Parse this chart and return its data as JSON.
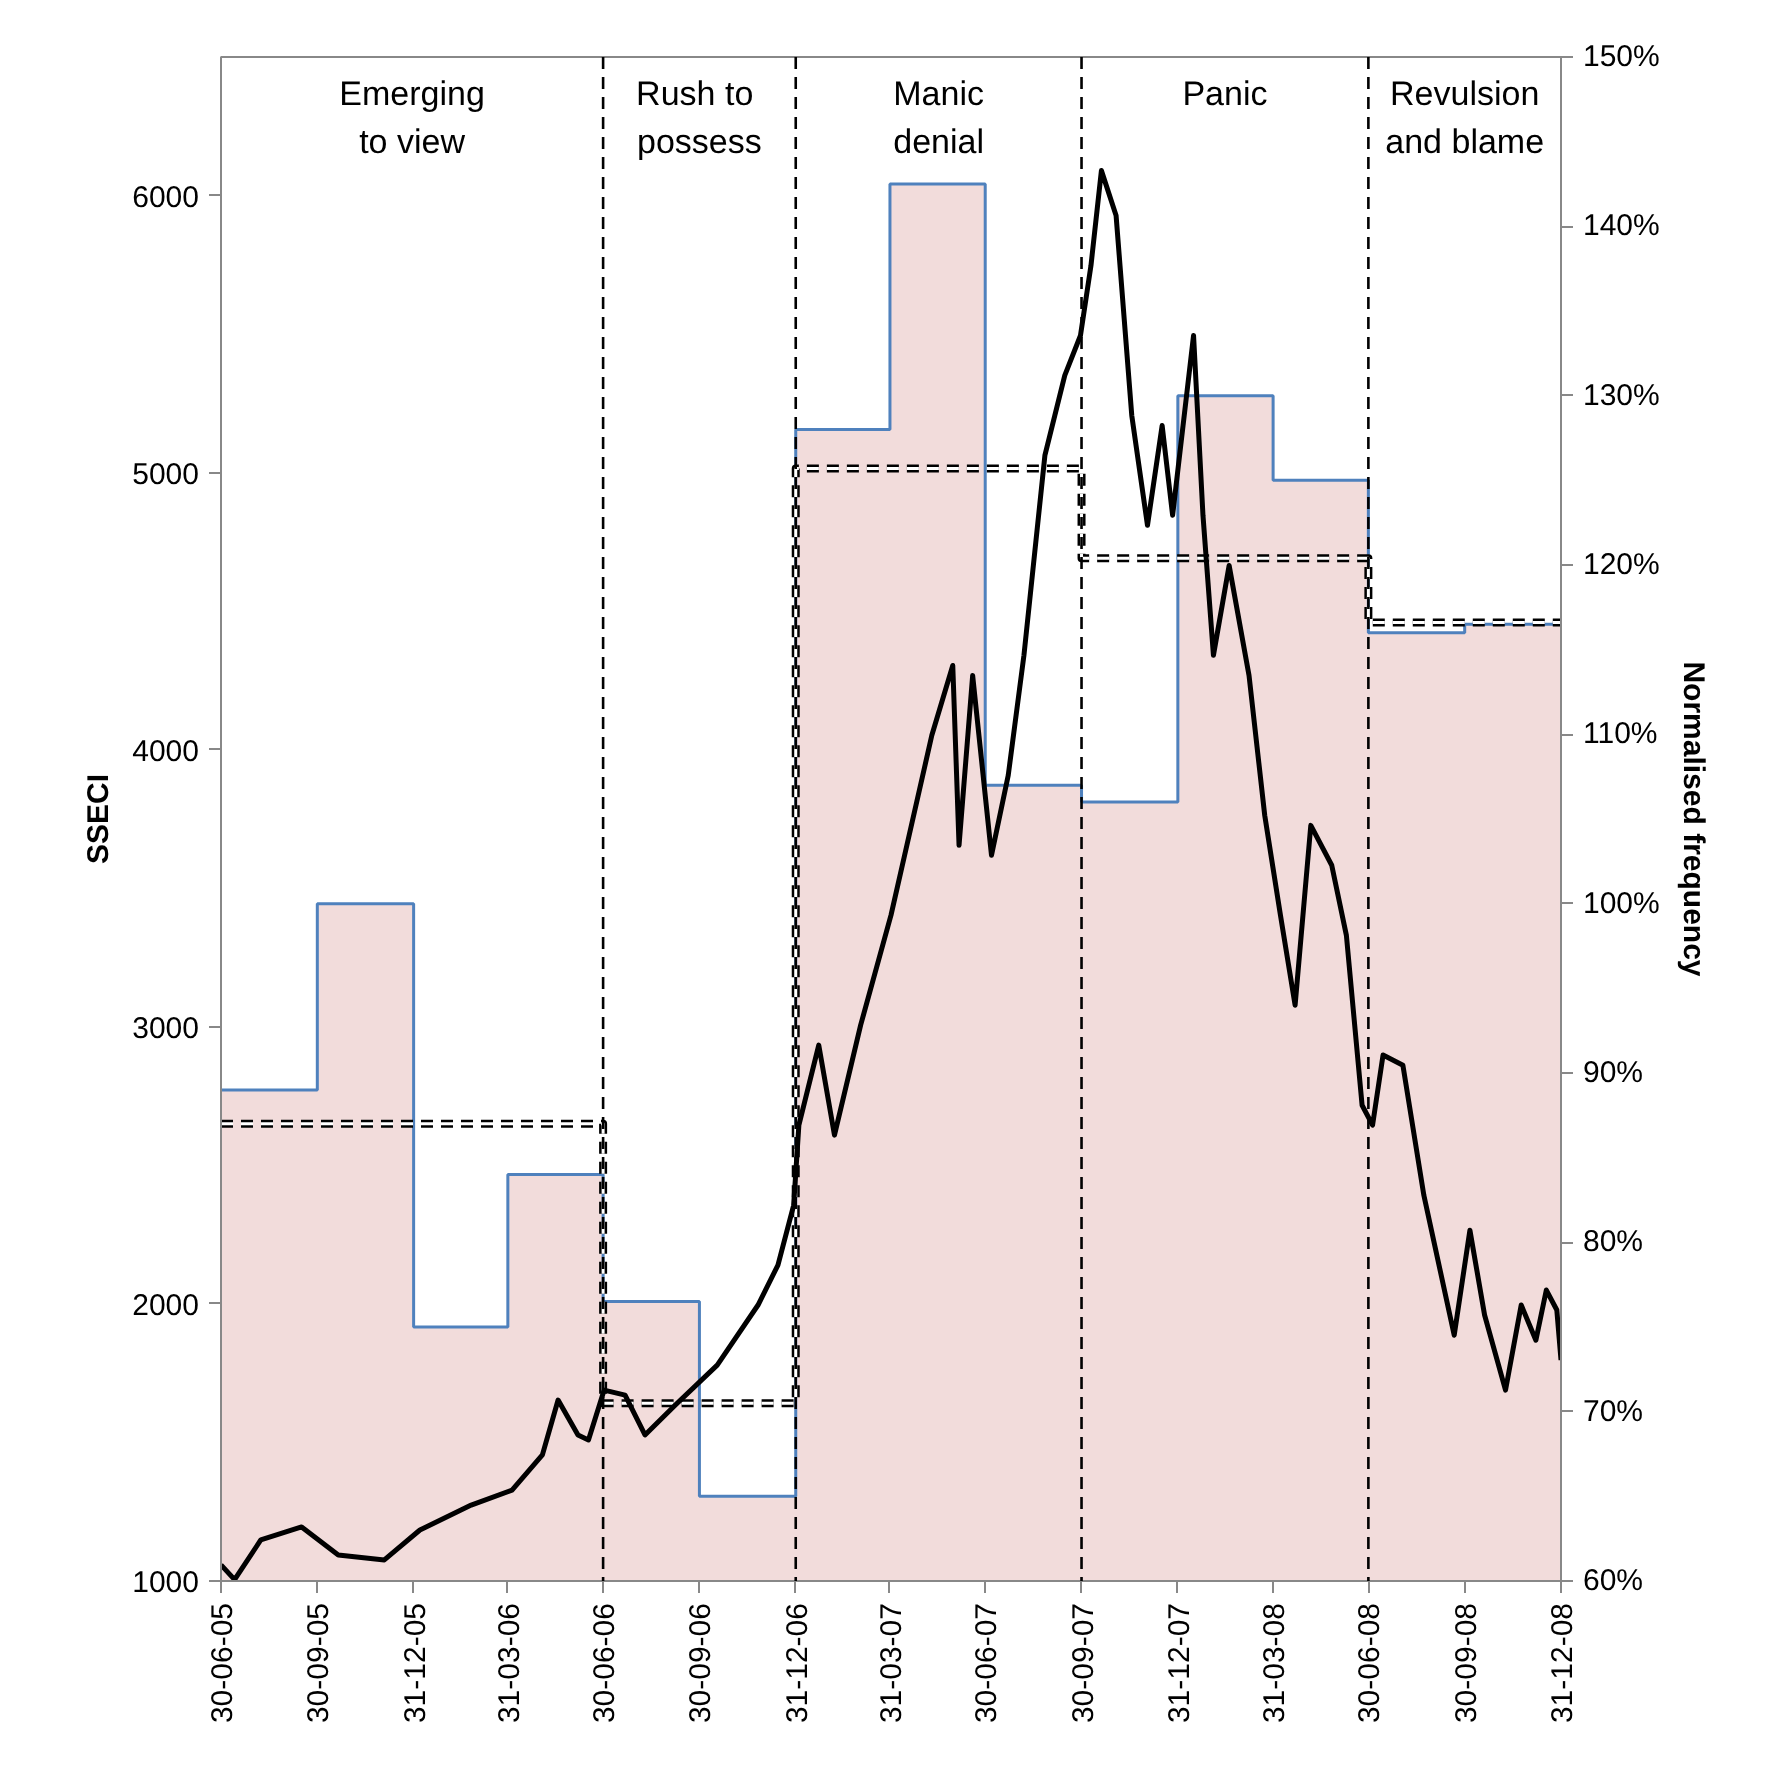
{
  "chart_data": {
    "type": "line",
    "ylabel": "SSECI",
    "y2label": "Normalised frequency",
    "xlim": [
      "2005-06-30",
      "2008-12-31"
    ],
    "xticks": [
      {
        "value": "2005-06-30",
        "label": "30-06-05"
      },
      {
        "value": "2005-09-30",
        "label": "30-09-05"
      },
      {
        "value": "2005-12-31",
        "label": "31-12-05"
      },
      {
        "value": "2006-03-31",
        "label": "31-03-06"
      },
      {
        "value": "2006-06-30",
        "label": "30-06-06"
      },
      {
        "value": "2006-09-30",
        "label": "30-09-06"
      },
      {
        "value": "2006-12-31",
        "label": "31-12-06"
      },
      {
        "value": "2007-03-31",
        "label": "31-03-07"
      },
      {
        "value": "2007-06-30",
        "label": "30-06-07"
      },
      {
        "value": "2007-09-30",
        "label": "30-09-07"
      },
      {
        "value": "2007-12-31",
        "label": "31-12-07"
      },
      {
        "value": "2008-03-31",
        "label": "31-03-08"
      },
      {
        "value": "2008-06-30",
        "label": "30-06-08"
      },
      {
        "value": "2008-09-30",
        "label": "30-09-08"
      },
      {
        "value": "2008-12-31",
        "label": "31-12-08"
      }
    ],
    "ylim": [
      1000,
      6500
    ],
    "yticks": [
      1000,
      2000,
      3000,
      4000,
      5000,
      6000
    ],
    "y2lim": [
      60,
      150
    ],
    "y2ticks": [
      {
        "value": 60,
        "label": "60%"
      },
      {
        "value": 70,
        "label": "70%"
      },
      {
        "value": 80,
        "label": "80%"
      },
      {
        "value": 90,
        "label": "90%"
      },
      {
        "value": 100,
        "label": "100%"
      },
      {
        "value": 110,
        "label": "110%"
      },
      {
        "value": 120,
        "label": "120%"
      },
      {
        "value": 130,
        "label": "130%"
      },
      {
        "value": 140,
        "label": "140%"
      },
      {
        "value": 150,
        "label": "150%"
      }
    ],
    "grid": false,
    "series": [
      {
        "type": "area",
        "axis": "y2",
        "color": "#f2dcdb",
        "x": [
          "2005-06-30",
          "2005-09-30",
          "2005-12-31",
          "2006-03-31",
          "2006-06-30",
          "2006-09-30",
          "2006-12-31",
          "2007-03-31",
          "2007-06-30",
          "2007-09-30",
          "2007-12-31",
          "2008-03-31",
          "2008-06-30",
          "2008-09-30",
          "2008-12-31"
        ],
        "values": [
          89,
          100,
          75,
          84,
          76.5,
          65,
          128,
          142.5,
          107,
          106,
          130,
          125,
          116,
          116.5,
          116.5
        ]
      },
      {
        "type": "step",
        "axis": "y2",
        "color": "#4f81bd",
        "x": [
          "2005-06-30",
          "2005-09-30",
          "2005-12-31",
          "2006-03-31",
          "2006-06-30",
          "2006-09-30",
          "2006-12-31",
          "2007-03-31",
          "2007-06-30",
          "2007-09-30",
          "2007-12-31",
          "2008-03-31",
          "2008-06-30",
          "2008-09-30",
          "2008-12-31"
        ],
        "values": [
          89,
          100,
          75,
          84,
          76.5,
          65,
          128,
          142.5,
          107,
          106,
          130,
          125,
          116,
          116.5,
          116.5
        ]
      },
      {
        "type": "line",
        "axis": "y2",
        "color": "#000000",
        "line_style": "dashed",
        "x": [
          "2005-06-30",
          "2006-06-30",
          "2006-06-30",
          "2006-12-31",
          "2006-12-31",
          "2007-09-30",
          "2007-09-30",
          "2008-06-30",
          "2008-06-30",
          "2008-12-31"
        ],
        "values": [
          87,
          87,
          70.5,
          70.5,
          125.7,
          125.7,
          120.4,
          120.4,
          116.6,
          116.6
        ]
      },
      {
        "color": "#000000",
        "line_style": "solid",
        "x": [
          "2005-06-30",
          "2005-07-13",
          "2005-08-07",
          "2005-09-15",
          "2005-10-20",
          "2005-12-03",
          "2006-01-06",
          "2006-02-24",
          "2006-04-04",
          "2006-05-03",
          "2006-05-18",
          "2006-06-06",
          "2006-06-16",
          "2006-07-01",
          "2006-07-21",
          "2006-08-09",
          "2006-09-07",
          "2006-10-17",
          "2006-11-25",
          "2006-12-14",
          "2006-12-29",
          "2007-01-03",
          "2007-01-22",
          "2007-02-06",
          "2007-03-03",
          "2007-04-01",
          "2007-04-14",
          "2007-05-10",
          "2007-05-30",
          "2007-06-05",
          "2007-06-18",
          "2007-07-06",
          "2007-07-22",
          "2007-08-06",
          "2007-08-26",
          "2007-09-14",
          "2007-09-29",
          "2007-10-09",
          "2007-10-19",
          "2007-11-02",
          "2007-11-17",
          "2007-12-02",
          "2007-12-16",
          "2007-12-26",
          "2008-01-15",
          "2008-01-24",
          "2008-02-03",
          "2008-02-18",
          "2008-03-08",
          "2008-03-23",
          "2008-04-07",
          "2008-04-21",
          "2008-05-06",
          "2008-05-26",
          "2008-06-09",
          "2008-06-24",
          "2008-07-04",
          "2008-07-14",
          "2008-08-02",
          "2008-08-22",
          "2008-09-20",
          "2008-10-05",
          "2008-10-19",
          "2008-11-08",
          "2008-11-23",
          "2008-12-07",
          "2008-12-17",
          "2008-12-27",
          "2008-12-31"
        ],
        "values": [
          1058,
          1005,
          1148,
          1195,
          1094,
          1076,
          1184,
          1274,
          1328,
          1455,
          1653,
          1527,
          1509,
          1689,
          1671,
          1527,
          1635,
          1779,
          1996,
          2140,
          2356,
          2645,
          2934,
          2609,
          3006,
          3403,
          3619,
          4052,
          4304,
          3655,
          4268,
          3619,
          3908,
          4341,
          5062,
          5351,
          5495,
          5747,
          6090,
          5928,
          5206,
          4810,
          5170,
          4846,
          5495,
          4846,
          4341,
          4665,
          4268,
          3763,
          3403,
          3078,
          3727,
          3583,
          3330,
          2717,
          2645,
          2898,
          2861,
          2392,
          1887,
          2266,
          1960,
          1689,
          1996,
          1869,
          2050,
          1978,
          1797
        ]
      }
    ],
    "ref_lines": [
      {
        "axis": "x",
        "value": "2006-06-30",
        "color": "#000000",
        "line_style": "dashed"
      },
      {
        "axis": "x",
        "value": "2006-12-31",
        "color": "#000000",
        "line_style": "dashed"
      },
      {
        "axis": "x",
        "value": "2007-09-30",
        "color": "#000000",
        "line_style": "dashed"
      },
      {
        "axis": "x",
        "value": "2008-06-30",
        "color": "#000000",
        "line_style": "dashed"
      }
    ],
    "annotations": [
      "Emerging\nto view",
      "Rush  to\npossess",
      "Manic\ndenial",
      "Panic",
      "Revulsion\nand blame"
    ]
  }
}
